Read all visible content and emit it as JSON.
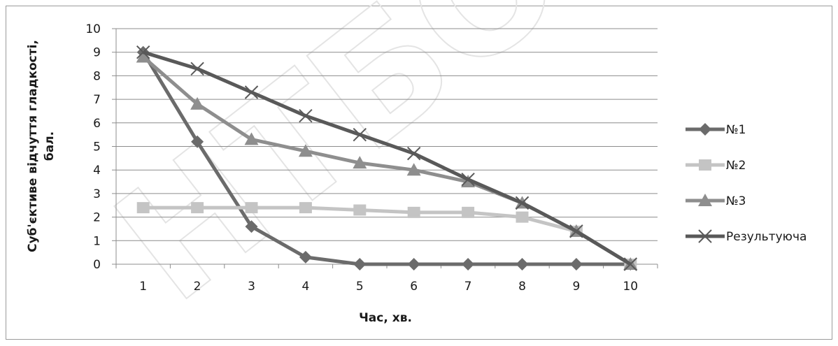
{
  "chart_data": {
    "type": "line",
    "xlabel": "Час, хв.",
    "ylabel_lines": [
      "Суб'єктиве відчуття гладкості,",
      "бал."
    ],
    "categories": [
      "1",
      "2",
      "3",
      "4",
      "5",
      "6",
      "7",
      "8",
      "9",
      "10"
    ],
    "ylim": [
      0,
      10
    ],
    "yticks": [
      "0",
      "1",
      "2",
      "3",
      "4",
      "5",
      "6",
      "7",
      "8",
      "9",
      "10"
    ],
    "grid": true,
    "legend_position": "right",
    "watermark_text": "НТБОН",
    "series": [
      {
        "name": "№1",
        "marker": "diamond",
        "color": "#6b6b6b",
        "values": [
          9,
          5.2,
          1.6,
          0.3,
          0,
          0,
          0,
          0,
          0,
          0
        ]
      },
      {
        "name": "№2",
        "marker": "square",
        "color": "#c4c4c4",
        "values": [
          2.4,
          2.4,
          2.4,
          2.4,
          2.3,
          2.2,
          2.2,
          2.0,
          1.4,
          0
        ]
      },
      {
        "name": "№3",
        "marker": "triangle",
        "color": "#8e8e8e",
        "values": [
          8.8,
          6.8,
          5.3,
          4.8,
          4.3,
          4.0,
          3.5,
          2.6,
          1.4,
          0
        ]
      },
      {
        "name": "Результуюча",
        "marker": "x",
        "color": "#595959",
        "values": [
          9,
          8.3,
          7.3,
          6.3,
          5.5,
          4.7,
          3.6,
          2.6,
          1.4,
          0
        ]
      }
    ]
  }
}
